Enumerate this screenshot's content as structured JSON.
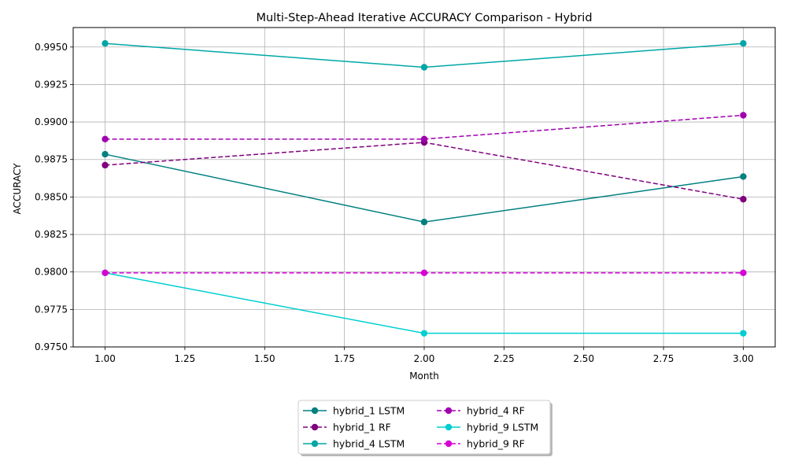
{
  "chart_data": {
    "type": "line",
    "title": "Multi-Step-Ahead Iterative ACCURACY Comparison - Hybrid",
    "xlabel": "Month",
    "ylabel": "ACCURACY",
    "x": [
      1,
      2,
      3
    ],
    "xlim": [
      0.9,
      3.1
    ],
    "ylim": [
      0.975,
      0.9963
    ],
    "xticks": [
      "1.00",
      "1.25",
      "1.50",
      "1.75",
      "2.00",
      "2.25",
      "2.50",
      "2.75",
      "3.00"
    ],
    "yticks": [
      "0.9750",
      "0.9775",
      "0.9800",
      "0.9825",
      "0.9850",
      "0.9875",
      "0.9900",
      "0.9925",
      "0.9950"
    ],
    "grid": true,
    "legend_position": "bottom-center, below axes, 2 columns",
    "series": [
      {
        "name": "hybrid_1 LSTM",
        "values": [
          0.98785,
          0.98333,
          0.98636
        ],
        "color": "#008080",
        "dash": "solid"
      },
      {
        "name": "hybrid_1 RF",
        "values": [
          0.98712,
          0.98864,
          0.98485
        ],
        "color": "#800080",
        "dash": "dashed"
      },
      {
        "name": "hybrid_4 LSTM",
        "values": [
          0.99524,
          0.99365,
          0.99524
        ],
        "color": "#00A6A6",
        "dash": "solid"
      },
      {
        "name": "hybrid_4 RF",
        "values": [
          0.98886,
          0.98886,
          0.99045
        ],
        "color": "#A000B0",
        "dash": "dashed"
      },
      {
        "name": "hybrid_9 LSTM",
        "values": [
          0.97994,
          0.97591,
          0.97591
        ],
        "color": "#00CED1",
        "dash": "solid"
      },
      {
        "name": "hybrid_9 RF",
        "values": [
          0.97994,
          0.97994,
          0.97994
        ],
        "color": "#D400D4",
        "dash": "dashed"
      }
    ]
  }
}
